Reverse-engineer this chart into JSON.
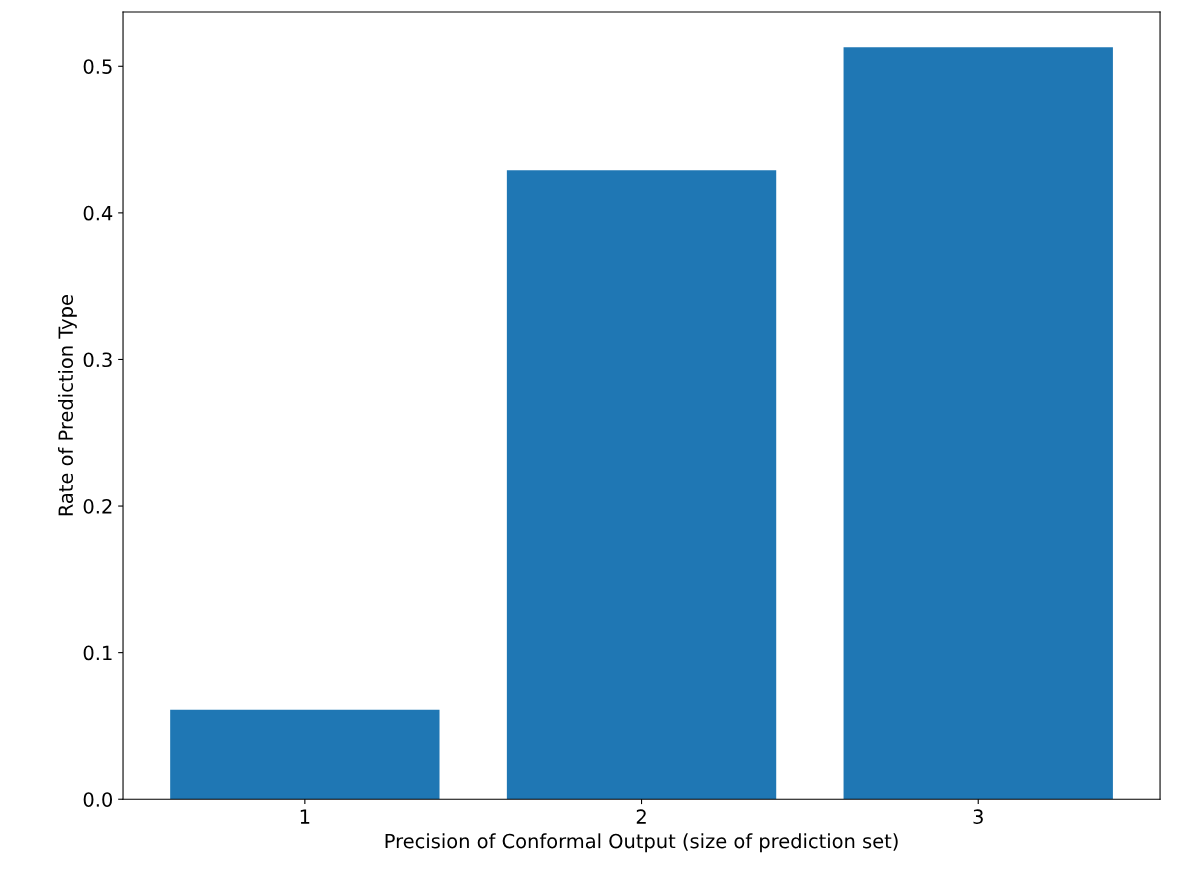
{
  "chart_data": {
    "type": "bar",
    "xlabel": "Precision of Conformal Output (size of prediction set)",
    "ylabel": "Rate of Prediction Type",
    "categories": [
      "1",
      "2",
      "3"
    ],
    "values": [
      0.061,
      0.429,
      0.513
    ],
    "color": "#1f77b4",
    "ylim": [
      0,
      0.537
    ],
    "yticks": [
      {
        "value": 0,
        "label": "0.0"
      },
      0.1,
      0.2,
      0.3,
      0.4,
      0.5
    ],
    "grid": false
  }
}
